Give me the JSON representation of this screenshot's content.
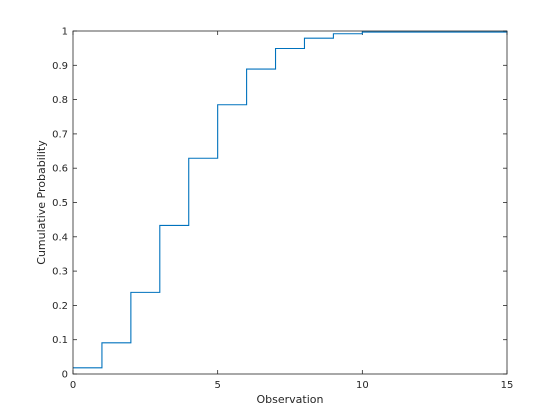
{
  "chart_data": {
    "type": "line",
    "subtype": "stairs",
    "title": "",
    "xlabel": "Observation",
    "ylabel": "Cumulative Probability",
    "xlim": [
      0,
      15
    ],
    "ylim": [
      0,
      1
    ],
    "xticks": [
      0,
      5,
      10,
      15
    ],
    "yticks": [
      0,
      0.1,
      0.2,
      0.3,
      0.4,
      0.5,
      0.6,
      0.7,
      0.8,
      0.9,
      1
    ],
    "ytick_labels": [
      "0",
      "0.1",
      "0.2",
      "0.3",
      "0.4",
      "0.5",
      "0.6",
      "0.7",
      "0.8",
      "0.9",
      "1"
    ],
    "xtick_labels": [
      "0",
      "5",
      "10",
      "15"
    ],
    "grid": false,
    "line_color": "#0072BD",
    "axis_color": "#262626",
    "series": [
      {
        "x": [
          0,
          1,
          2,
          3,
          4,
          5,
          6,
          7,
          8,
          9,
          10,
          15
        ],
        "y": [
          0.018,
          0.091,
          0.238,
          0.433,
          0.629,
          0.785,
          0.889,
          0.949,
          0.979,
          0.992,
          0.997,
          1.0
        ]
      }
    ]
  }
}
